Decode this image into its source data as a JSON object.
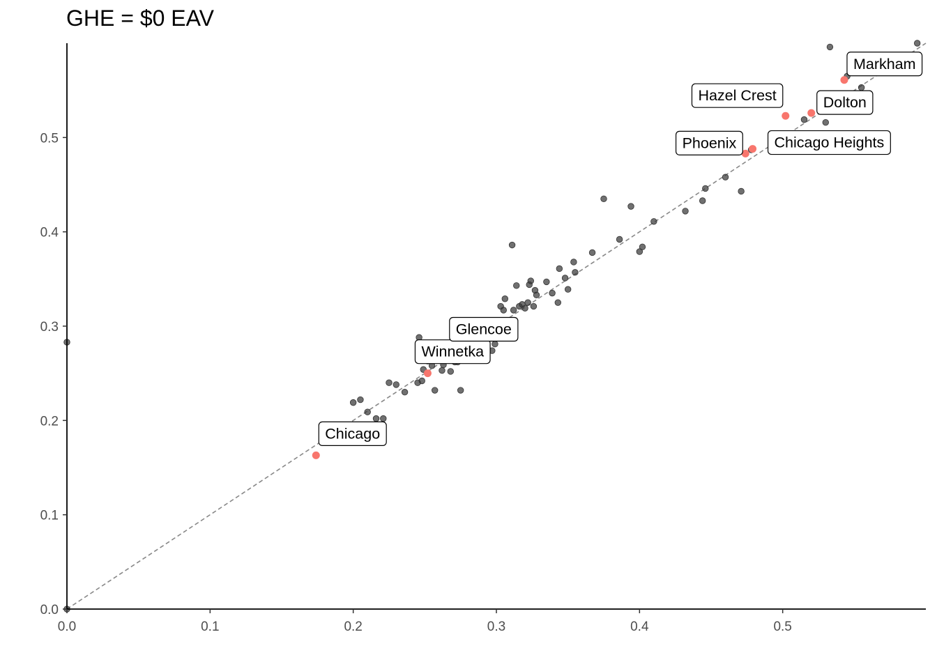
{
  "chart_data": {
    "type": "scatter",
    "title": "GHE = $0 EAV",
    "xlabel": "",
    "ylabel": "",
    "xlim": [
      0,
      0.6
    ],
    "ylim": [
      0,
      0.6
    ],
    "x_ticks": [
      0.0,
      0.1,
      0.2,
      0.3,
      0.4,
      0.5
    ],
    "x_tick_labels": [
      "0.0",
      "0.1",
      "0.2",
      "0.3",
      "0.4",
      "0.5"
    ],
    "y_ticks": [
      0.0,
      0.1,
      0.2,
      0.3,
      0.4,
      0.5
    ],
    "y_tick_labels": [
      "0.0",
      "0.1",
      "0.2",
      "0.3",
      "0.4",
      "0.5"
    ],
    "reference_line": {
      "style": "dashed",
      "slope": 1,
      "intercept": 0,
      "color": "#888888"
    },
    "grid": false,
    "colors": {
      "point": "#333333",
      "highlight": "#F8766D"
    },
    "points": [
      [
        0.0,
        0.283
      ],
      [
        0.0,
        0.0
      ],
      [
        0.2,
        0.219
      ],
      [
        0.205,
        0.222
      ],
      [
        0.21,
        0.209
      ],
      [
        0.216,
        0.202
      ],
      [
        0.221,
        0.202
      ],
      [
        0.225,
        0.24
      ],
      [
        0.23,
        0.238
      ],
      [
        0.236,
        0.23
      ],
      [
        0.245,
        0.24
      ],
      [
        0.246,
        0.288
      ],
      [
        0.248,
        0.242
      ],
      [
        0.249,
        0.254
      ],
      [
        0.252,
        0.263
      ],
      [
        0.255,
        0.258
      ],
      [
        0.257,
        0.232
      ],
      [
        0.261,
        0.265
      ],
      [
        0.262,
        0.253
      ],
      [
        0.263,
        0.259
      ],
      [
        0.264,
        0.277
      ],
      [
        0.266,
        0.266
      ],
      [
        0.268,
        0.252
      ],
      [
        0.27,
        0.263
      ],
      [
        0.271,
        0.262
      ],
      [
        0.272,
        0.266
      ],
      [
        0.273,
        0.262
      ],
      [
        0.274,
        0.27
      ],
      [
        0.275,
        0.232
      ],
      [
        0.276,
        0.28
      ],
      [
        0.278,
        0.276
      ],
      [
        0.28,
        0.285
      ],
      [
        0.282,
        0.281
      ],
      [
        0.284,
        0.279
      ],
      [
        0.285,
        0.279
      ],
      [
        0.285,
        0.273
      ],
      [
        0.287,
        0.28
      ],
      [
        0.293,
        0.29
      ],
      [
        0.297,
        0.274
      ],
      [
        0.299,
        0.281
      ],
      [
        0.3,
        0.292
      ],
      [
        0.303,
        0.321
      ],
      [
        0.305,
        0.317
      ],
      [
        0.306,
        0.329
      ],
      [
        0.311,
        0.386
      ],
      [
        0.312,
        0.317
      ],
      [
        0.314,
        0.343
      ],
      [
        0.316,
        0.321
      ],
      [
        0.318,
        0.323
      ],
      [
        0.32,
        0.319
      ],
      [
        0.322,
        0.325
      ],
      [
        0.323,
        0.344
      ],
      [
        0.324,
        0.348
      ],
      [
        0.326,
        0.321
      ],
      [
        0.327,
        0.338
      ],
      [
        0.328,
        0.333
      ],
      [
        0.335,
        0.347
      ],
      [
        0.339,
        0.335
      ],
      [
        0.343,
        0.325
      ],
      [
        0.344,
        0.361
      ],
      [
        0.348,
        0.351
      ],
      [
        0.35,
        0.339
      ],
      [
        0.354,
        0.368
      ],
      [
        0.355,
        0.357
      ],
      [
        0.367,
        0.378
      ],
      [
        0.375,
        0.435
      ],
      [
        0.386,
        0.392
      ],
      [
        0.394,
        0.427
      ],
      [
        0.4,
        0.379
      ],
      [
        0.402,
        0.384
      ],
      [
        0.41,
        0.411
      ],
      [
        0.432,
        0.422
      ],
      [
        0.444,
        0.433
      ],
      [
        0.446,
        0.446
      ],
      [
        0.46,
        0.458
      ],
      [
        0.471,
        0.443
      ],
      [
        0.478,
        0.487
      ],
      [
        0.515,
        0.519
      ],
      [
        0.53,
        0.516
      ],
      [
        0.533,
        0.596
      ],
      [
        0.545,
        0.565
      ],
      [
        0.555,
        0.553
      ],
      [
        0.594,
        0.6
      ]
    ],
    "highlighted": [
      {
        "label": "Chicago",
        "x": 0.174,
        "y": 0.163
      },
      {
        "label": "Winnetka",
        "x": 0.252,
        "y": 0.25
      },
      {
        "label": "Glencoe",
        "x": 0.277,
        "y": 0.276
      },
      {
        "label": "Phoenix",
        "x": 0.474,
        "y": 0.483
      },
      {
        "label": "Chicago Heights",
        "x": 0.479,
        "y": 0.488
      },
      {
        "label": "Hazel Crest",
        "x": 0.502,
        "y": 0.523
      },
      {
        "label": "Dolton",
        "x": 0.52,
        "y": 0.526
      },
      {
        "label": "Markham",
        "x": 0.543,
        "y": 0.561
      }
    ]
  }
}
